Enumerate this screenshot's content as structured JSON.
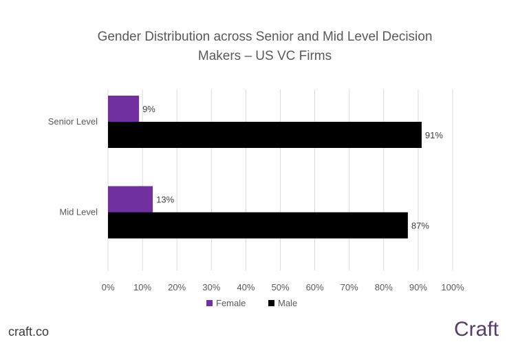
{
  "chart_data": {
    "type": "bar",
    "orientation": "horizontal",
    "title_line1": "Gender Distribution across Senior and Mid Level Decision",
    "title_line2": "Makers – US VC Firms",
    "categories": [
      "Senior Level",
      "Mid Level"
    ],
    "series": [
      {
        "name": "Female",
        "values": [
          9,
          13
        ],
        "labels": [
          "9%",
          "13%"
        ],
        "color": "#7030a0"
      },
      {
        "name": "Male",
        "values": [
          91,
          87
        ],
        "labels": [
          "91%",
          "87%"
        ],
        "color": "#000000"
      }
    ],
    "xlim": [
      0,
      100
    ],
    "x_ticks": [
      "0%",
      "10%",
      "20%",
      "30%",
      "40%",
      "50%",
      "60%",
      "70%",
      "80%",
      "90%",
      "100%"
    ],
    "grid": true,
    "legend_position": "bottom"
  },
  "footer": {
    "left_text": "craft.co",
    "right_logo": "Craft"
  }
}
